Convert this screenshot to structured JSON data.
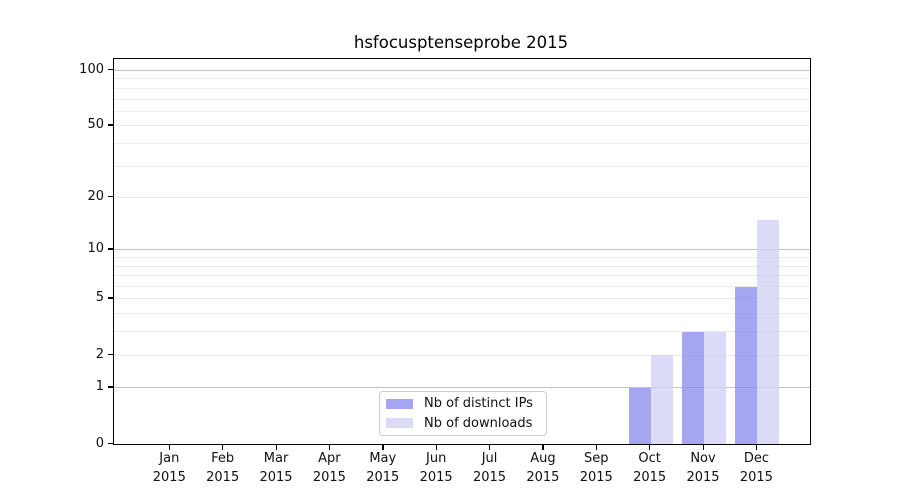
{
  "title": "hsfocusptenseprobe 2015",
  "legend": {
    "items": [
      {
        "label": "Nb of distinct IPs",
        "color": "#a5a5f2"
      },
      {
        "label": "Nb of downloads",
        "color": "#dbdbf8"
      }
    ]
  },
  "x_axis": {
    "year": "2015",
    "months": [
      "Jan",
      "Feb",
      "Mar",
      "Apr",
      "May",
      "Jun",
      "Jul",
      "Aug",
      "Sep",
      "Oct",
      "Nov",
      "Dec"
    ]
  },
  "y_axis": {
    "tick_labels": [
      "0",
      "1",
      "2",
      "5",
      "10",
      "20",
      "50",
      "100"
    ]
  },
  "chart_data": {
    "type": "bar",
    "title": "hsfocusptenseprobe 2015",
    "categories": [
      "Jan 2015",
      "Feb 2015",
      "Mar 2015",
      "Apr 2015",
      "May 2015",
      "Jun 2015",
      "Jul 2015",
      "Aug 2015",
      "Sep 2015",
      "Oct 2015",
      "Nov 2015",
      "Dec 2015"
    ],
    "series": [
      {
        "name": "Nb of distinct IPs",
        "color": "#a5a5f2",
        "values": [
          0,
          0,
          0,
          0,
          0,
          0,
          0,
          0,
          0,
          1,
          3,
          6
        ]
      },
      {
        "name": "Nb of downloads",
        "color": "#dbdbf8",
        "values": [
          0,
          0,
          0,
          0,
          0,
          0,
          0,
          0,
          0,
          2,
          3,
          15
        ]
      }
    ],
    "xlabel": "",
    "ylabel": "",
    "ylim": [
      0,
      115
    ],
    "y_scale": "log1p",
    "y_ticks": [
      0,
      1,
      2,
      5,
      10,
      20,
      50,
      100
    ],
    "y_major_gridlines": [
      1,
      10,
      100
    ],
    "y_minor_gridlines": [
      2,
      3,
      4,
      5,
      6,
      7,
      8,
      9,
      20,
      30,
      40,
      50,
      60,
      70,
      80,
      90
    ],
    "grid": true,
    "legend_position": "lower center"
  }
}
